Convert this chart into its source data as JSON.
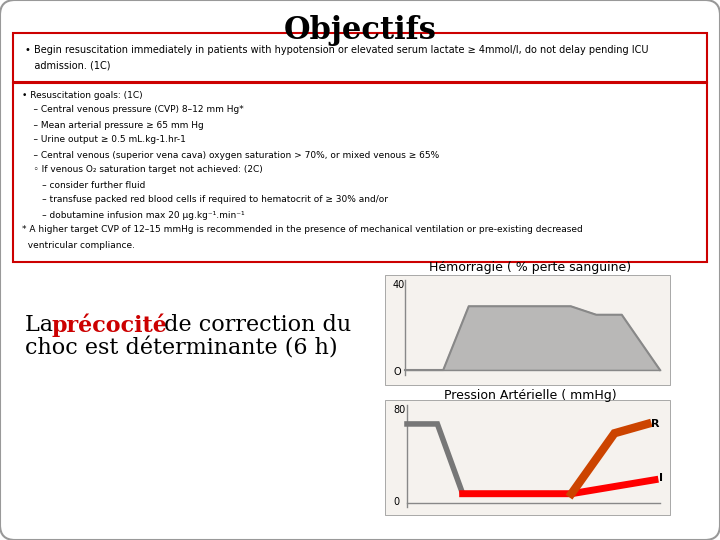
{
  "title": "Objectifs",
  "title_fontsize": 22,
  "background_color": "#ffffff",
  "border_color": "#cccccc",
  "precocite_color": "#cc0000",
  "hemorragie_label": "Hémorragie ( % perte sanguine)",
  "pression_label": "Pression Artérielle ( mmHg)",
  "chart1_fill_color": "#aaaaaa",
  "chart2_gray_color": "#777777",
  "chart2_red_color": "#ff0000",
  "chart2_orange_color": "#cc4400"
}
